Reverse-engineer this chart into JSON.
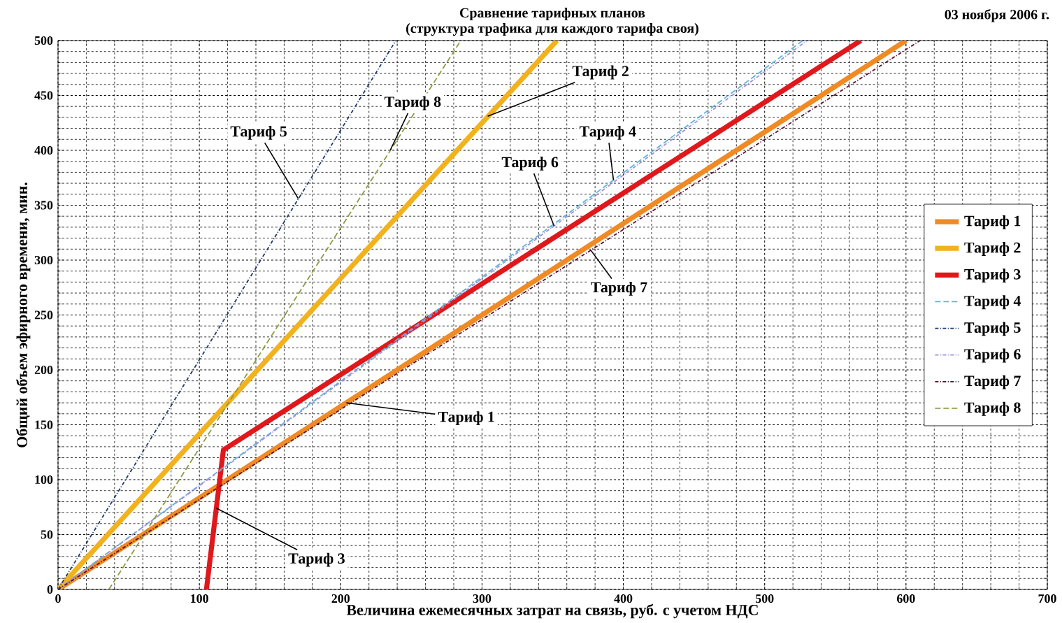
{
  "chart_data": {
    "type": "line",
    "title": "Сравнение тарифных планов",
    "subtitle": "(структура трафика для каждого тарифа своя)",
    "xlabel": "Величина ежемесячных затрат на связь, руб. с учетом НДС",
    "ylabel": "Общий объем эфирного времени, мин.",
    "xlim": [
      0,
      700
    ],
    "ylim": [
      0,
      500
    ],
    "xticks": [
      0,
      100,
      200,
      300,
      400,
      500,
      600,
      700
    ],
    "yticks": [
      0,
      50,
      100,
      150,
      200,
      250,
      300,
      350,
      400,
      450,
      500
    ],
    "grid": true,
    "legend": "right",
    "series": [
      {
        "name": "Тариф 1",
        "color": "#f08a24",
        "line_style": "solid",
        "x": [
          0,
          600
        ],
        "values": [
          0,
          500
        ]
      },
      {
        "name": "Тариф 2",
        "color": "#f2b21e",
        "line_style": "solid",
        "x": [
          0,
          353
        ],
        "values": [
          0,
          500
        ]
      },
      {
        "name": "Тариф 3",
        "color": "#e0181c",
        "line_style": "solid",
        "x": [
          105,
          117,
          568
        ],
        "values": [
          0,
          127,
          500
        ]
      },
      {
        "name": "Тариф 4",
        "color": "#5ab4d8",
        "line_style": "dashed",
        "x": [
          0,
          527
        ],
        "values": [
          0,
          500
        ]
      },
      {
        "name": "Тариф 5",
        "color": "#1f3a6e",
        "line_style": "dotted",
        "x": [
          0,
          239
        ],
        "values": [
          0,
          500
        ]
      },
      {
        "name": "Тариф 6",
        "color": "#a090e0",
        "line_style": "dotted",
        "x": [
          0,
          530
        ],
        "values": [
          0,
          500
        ]
      },
      {
        "name": "Тариф 7",
        "color": "#5a1030",
        "line_style": "dotted",
        "x": [
          0,
          610
        ],
        "values": [
          0,
          500
        ]
      },
      {
        "name": "Тариф 8",
        "color": "#909a40",
        "line_style": "dashed",
        "x": [
          36,
          285
        ],
        "values": [
          0,
          500
        ]
      }
    ],
    "annotations": [
      "03 ноября 2006 г.",
      {
        "text": "Тариф 5",
        "x": 170,
        "y": 356
      },
      {
        "text": "Тариф 8",
        "x": 235,
        "y": 400
      },
      {
        "text": "Тариф 2",
        "x": 304,
        "y": 431
      },
      {
        "text": "Тариф 4",
        "x": 393,
        "y": 373
      },
      {
        "text": "Тариф 6",
        "x": 351,
        "y": 331
      },
      {
        "text": "Тариф 7",
        "x": 377,
        "y": 309
      },
      {
        "text": "Тариф 1",
        "x": 204,
        "y": 170
      },
      {
        "text": "Тариф 3",
        "x": 112,
        "y": 74
      }
    ]
  }
}
